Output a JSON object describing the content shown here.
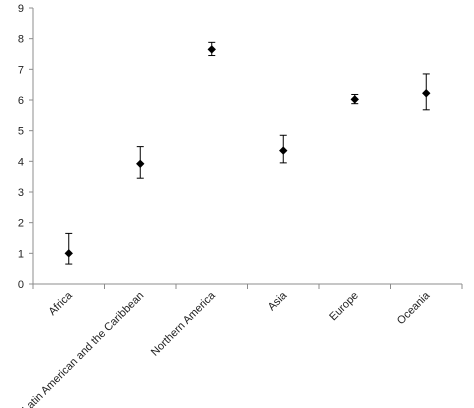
{
  "chart_data": {
    "type": "scatter",
    "title": "",
    "xlabel": "",
    "ylabel": "",
    "ylim": [
      0,
      9
    ],
    "y_ticks": [
      "0",
      "1",
      "2",
      "3",
      "4",
      "5",
      "6",
      "7",
      "8",
      "9"
    ],
    "grid": false,
    "legend": "none",
    "categories": [
      "Africa",
      "Latin American and the Caribbean",
      "Northern America",
      "Asia",
      "Europe",
      "Oceania"
    ],
    "points": [
      {
        "category": "Africa",
        "value": 1.0,
        "lower": 0.65,
        "upper": 1.65
      },
      {
        "category": "Latin American and the Caribbean",
        "value": 3.92,
        "lower": 3.45,
        "upper": 4.48
      },
      {
        "category": "Northern America",
        "value": 7.65,
        "lower": 7.45,
        "upper": 7.88
      },
      {
        "category": "Asia",
        "value": 4.35,
        "lower": 3.95,
        "upper": 4.85
      },
      {
        "category": "Europe",
        "value": 6.02,
        "lower": 5.88,
        "upper": 6.18
      },
      {
        "category": "Oceania",
        "value": 6.22,
        "lower": 5.68,
        "upper": 6.85
      }
    ],
    "colors": {
      "axis": "#8c8c8c",
      "marker": "#000000",
      "errorbar": "#000000"
    }
  }
}
